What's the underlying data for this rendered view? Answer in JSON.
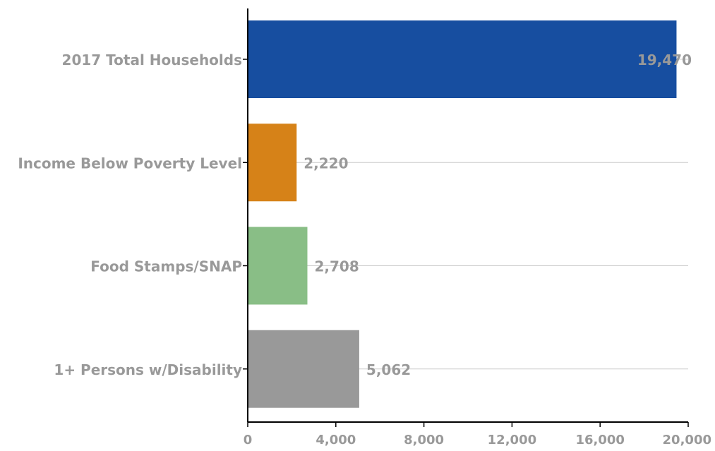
{
  "chart_data": {
    "type": "bar",
    "orientation": "horizontal",
    "title": "",
    "xlabel": "",
    "ylabel": "",
    "categories": [
      "2017 Total Households",
      "Income Below Poverty Level",
      "Food Stamps/SNAP",
      "1+ Persons w/Disability"
    ],
    "values": [
      19470,
      2220,
      2708,
      5062
    ],
    "value_labels": [
      "19,470",
      "2,220",
      "2,708",
      "5,062"
    ],
    "bar_colors": [
      "#174ea0",
      "#d68218",
      "#89be86",
      "#999999"
    ],
    "xlim": [
      0,
      20000
    ],
    "x_ticks": [
      0,
      4000,
      8000,
      12000,
      16000,
      20000
    ],
    "x_tick_labels": [
      "0",
      "4,000",
      "8,000",
      "12,000",
      "16,000",
      "20,000"
    ],
    "grid": true,
    "legend": "none",
    "text_color": "#999999",
    "grid_color": "#cccccc",
    "axis_color": "#000000"
  }
}
